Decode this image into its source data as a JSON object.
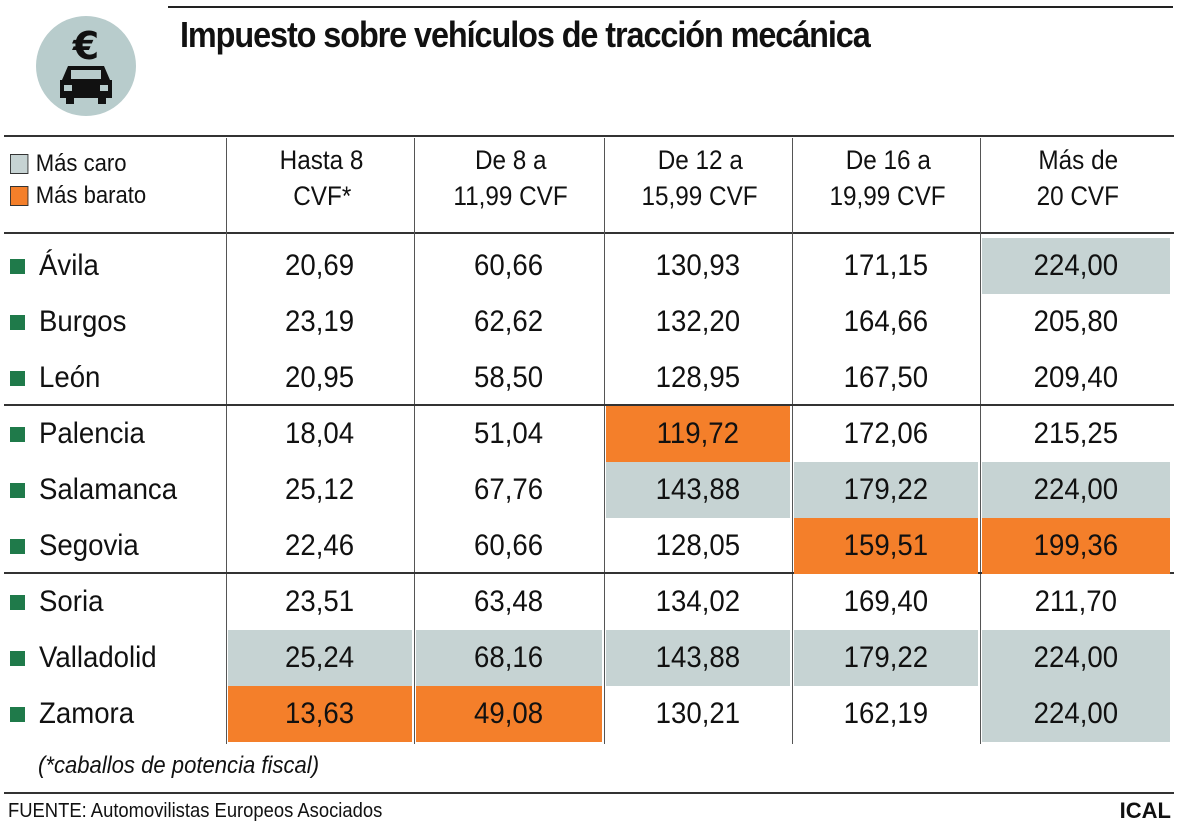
{
  "title": "Impuesto sobre vehículos de tracción mecánica",
  "logo": {
    "icon": "euro-car-icon",
    "symbol": "€"
  },
  "legend": [
    {
      "label": "Más caro",
      "color": "#c6d3d3"
    },
    {
      "label": "Más barato",
      "color": "#f47f2a"
    }
  ],
  "colors": {
    "highest": "#c6d3d3",
    "lowest": "#f47f2a",
    "bullet": "#1f7a4a"
  },
  "chart_data": {
    "type": "table",
    "title": "Impuesto sobre vehículos de tracción mecánica",
    "columns": [
      {
        "line1": "Hasta 8",
        "line2": "CVF*"
      },
      {
        "line1": "De 8 a",
        "line2": "11,99 CVF"
      },
      {
        "line1": "De 12 a",
        "line2": "15,99 CVF"
      },
      {
        "line1": "De 16 a",
        "line2": "19,99 CVF"
      },
      {
        "line1": "Más de",
        "line2": "20 CVF"
      }
    ],
    "rows": [
      {
        "city": "Ávila",
        "values": [
          "20,69",
          "60,66",
          "130,93",
          "171,15",
          "224,00"
        ],
        "marks": [
          "",
          "",
          "",
          "",
          "high"
        ]
      },
      {
        "city": "Burgos",
        "values": [
          "23,19",
          "62,62",
          "132,20",
          "164,66",
          "205,80"
        ],
        "marks": [
          "",
          "",
          "",
          "",
          ""
        ]
      },
      {
        "city": "León",
        "values": [
          "20,95",
          "58,50",
          "128,95",
          "167,50",
          "209,40"
        ],
        "marks": [
          "",
          "",
          "",
          "",
          ""
        ]
      },
      {
        "city": "Palencia",
        "values": [
          "18,04",
          "51,04",
          "119,72",
          "172,06",
          "215,25"
        ],
        "marks": [
          "",
          "",
          "low",
          "",
          ""
        ]
      },
      {
        "city": "Salamanca",
        "values": [
          "25,12",
          "67,76",
          "143,88",
          "179,22",
          "224,00"
        ],
        "marks": [
          "",
          "",
          "high",
          "high",
          "high"
        ]
      },
      {
        "city": "Segovia",
        "values": [
          "22,46",
          "60,66",
          "128,05",
          "159,51",
          "199,36"
        ],
        "marks": [
          "",
          "",
          "",
          "low",
          "low"
        ]
      },
      {
        "city": "Soria",
        "values": [
          "23,51",
          "63,48",
          "134,02",
          "169,40",
          "211,70"
        ],
        "marks": [
          "",
          "",
          "",
          "",
          ""
        ]
      },
      {
        "city": "Valladolid",
        "values": [
          "25,24",
          "68,16",
          "143,88",
          "179,22",
          "224,00"
        ],
        "marks": [
          "high",
          "high",
          "high",
          "high",
          "high"
        ]
      },
      {
        "city": "Zamora",
        "values": [
          "13,63",
          "49,08",
          "130,21",
          "162,19",
          "224,00"
        ],
        "marks": [
          "low",
          "low",
          "",
          "",
          "high"
        ]
      }
    ]
  },
  "footnote": "(*caballos de potencia fiscal)",
  "source": "FUENTE: Automovilistas Europeos Asociados",
  "agency": "ICAL"
}
